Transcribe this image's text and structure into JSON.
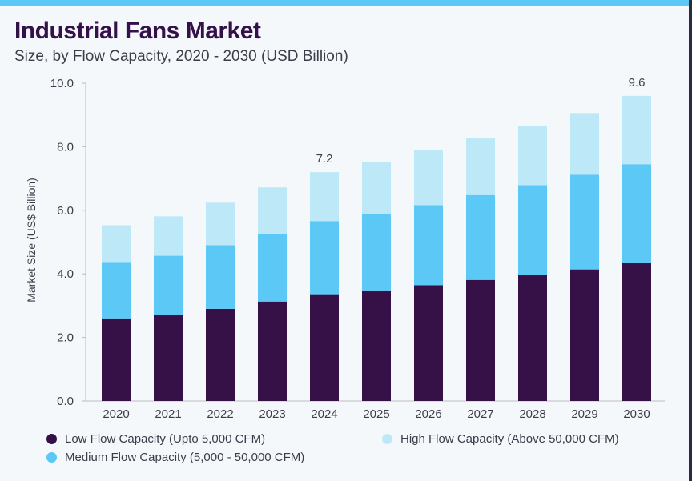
{
  "title": "Industrial Fans Market",
  "subtitle": "Size, by Flow Capacity, 2020 - 2030 (USD Billion)",
  "chart_data": {
    "type": "bar",
    "stacked": true,
    "title": "Industrial Fans Market",
    "subtitle": "Size, by Flow Capacity, 2020 - 2030 (USD Billion)",
    "xlabel": "",
    "ylabel": "Market Size (US$ Billion)",
    "ylim": [
      0,
      10
    ],
    "yticks": [
      "0.0",
      "2.0",
      "4.0",
      "6.0",
      "8.0",
      "10.0"
    ],
    "categories": [
      "2020",
      "2021",
      "2022",
      "2023",
      "2024",
      "2025",
      "2026",
      "2027",
      "2028",
      "2029",
      "2030"
    ],
    "series": [
      {
        "name": "Low Flow Capacity (Upto 5,000 CFM)",
        "color": "#361148",
        "values": [
          2.6,
          2.7,
          2.9,
          3.13,
          3.36,
          3.48,
          3.64,
          3.81,
          3.96,
          4.14,
          4.34
        ]
      },
      {
        "name": "Medium Flow Capacity (5,000 - 50,000 CFM)",
        "color": "#5bc8f5",
        "values": [
          1.77,
          1.87,
          2.0,
          2.12,
          2.3,
          2.4,
          2.52,
          2.67,
          2.83,
          2.98,
          3.11
        ]
      },
      {
        "name": "High Flow Capacity (Above 50,000 CFM)",
        "color": "#bde8f8",
        "values": [
          1.16,
          1.24,
          1.34,
          1.47,
          1.54,
          1.65,
          1.74,
          1.78,
          1.87,
          1.94,
          2.15
        ]
      }
    ],
    "annotations": [
      {
        "category": "2024",
        "text": "7.2"
      },
      {
        "category": "2030",
        "text": "9.6"
      }
    ],
    "grid": false,
    "legend_position": "bottom"
  }
}
